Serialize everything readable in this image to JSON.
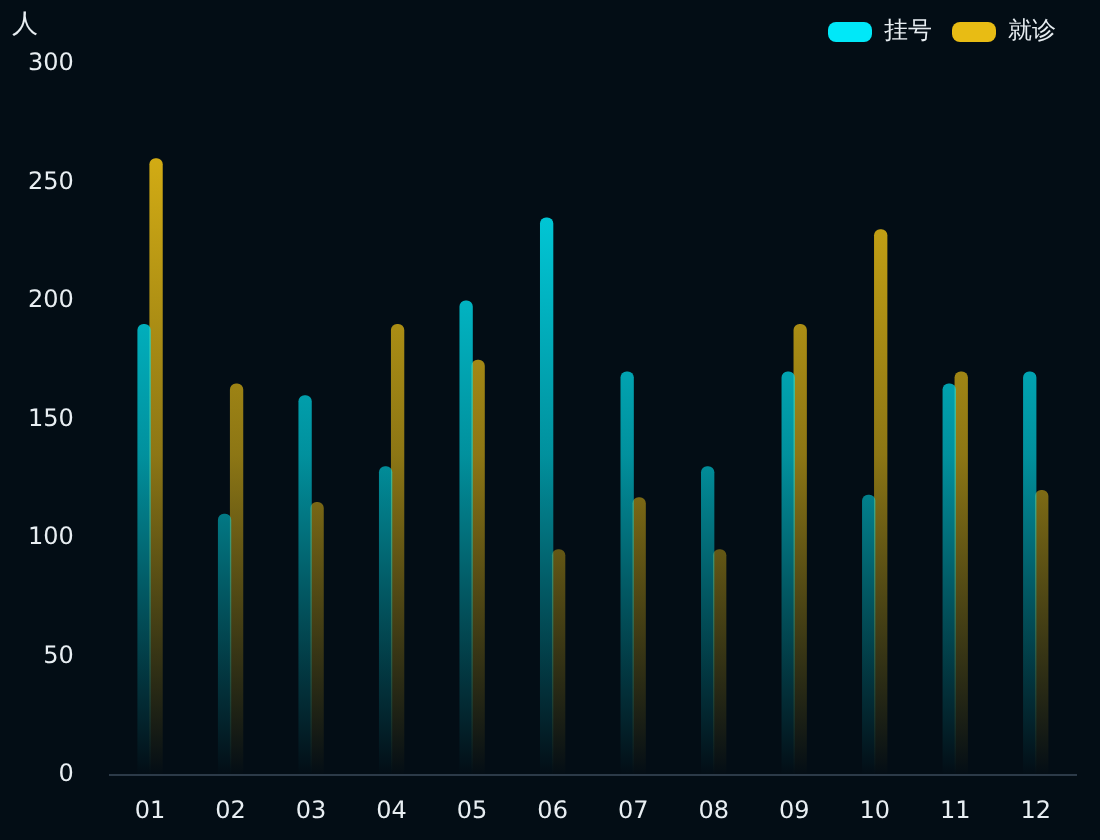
{
  "chart_data": {
    "type": "bar",
    "ylabel": "人",
    "categories": [
      "01",
      "02",
      "03",
      "04",
      "05",
      "06",
      "07",
      "08",
      "09",
      "10",
      "11",
      "12"
    ],
    "series": [
      {
        "name": "挂号",
        "color": "#00e8f8",
        "values": [
          190,
          110,
          160,
          130,
          200,
          235,
          170,
          130,
          170,
          118,
          165,
          170
        ]
      },
      {
        "name": "就诊",
        "color": "#e8bc14",
        "values": [
          260,
          165,
          115,
          190,
          175,
          95,
          117,
          95,
          190,
          230,
          170,
          120
        ]
      }
    ],
    "ylim": [
      0,
      300
    ],
    "yticks": [
      0,
      50,
      100,
      150,
      200,
      250,
      300
    ],
    "grid": false,
    "legend": "top right"
  }
}
